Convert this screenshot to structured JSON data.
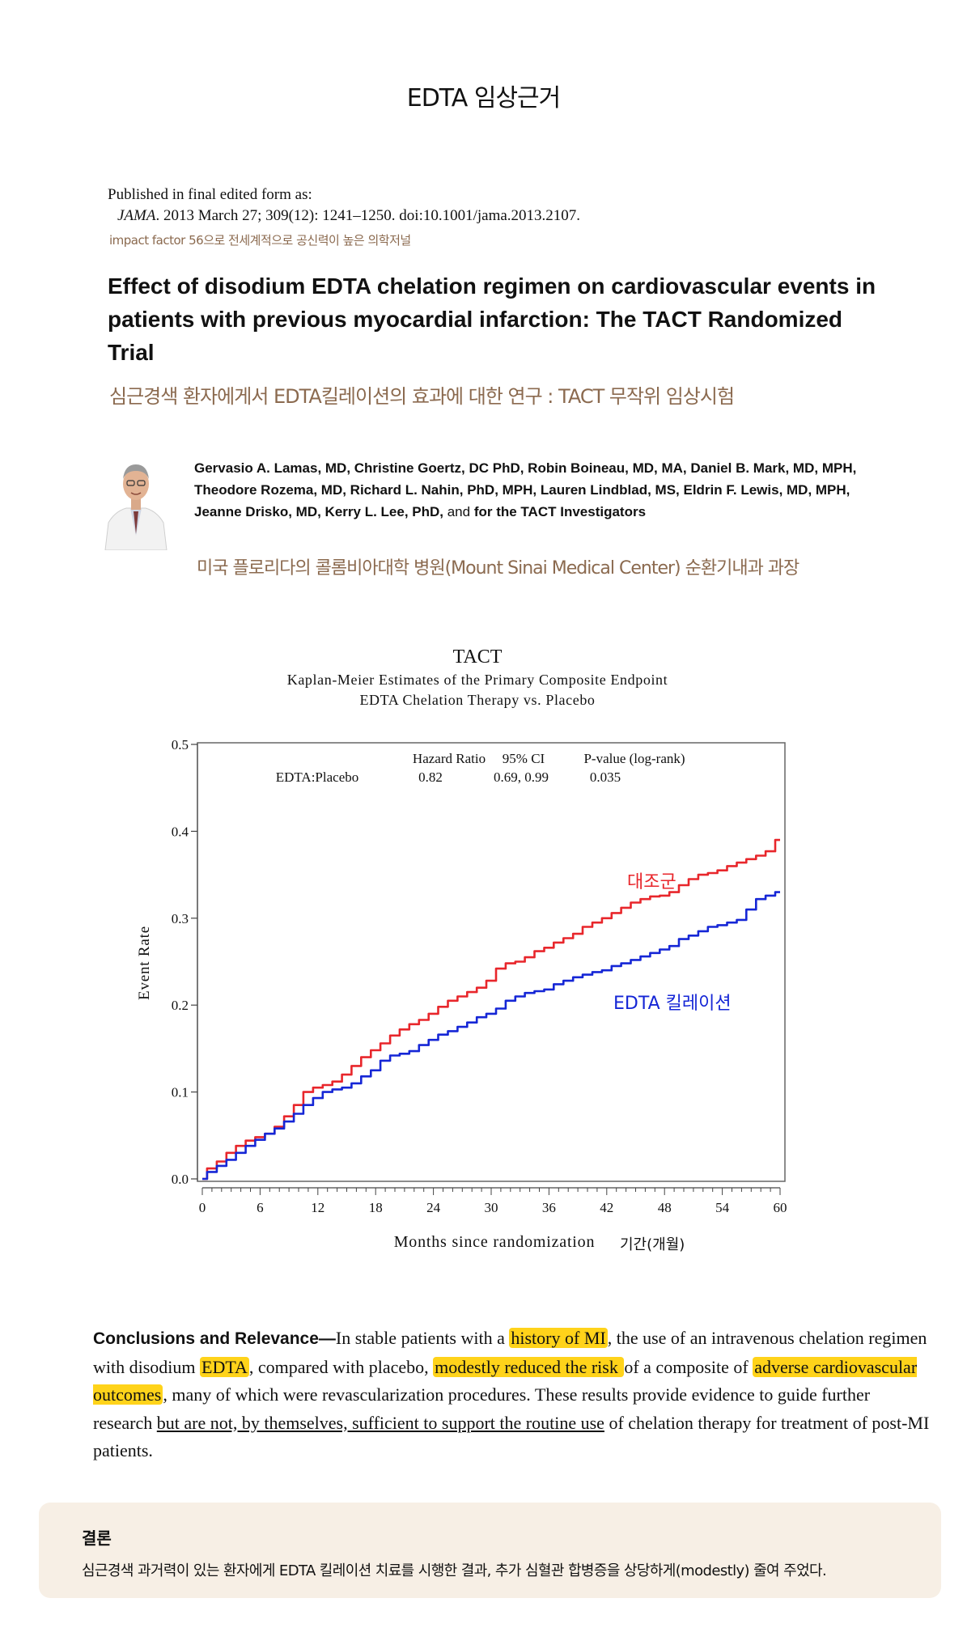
{
  "header": {
    "title": "EDTA 임상근거"
  },
  "publication": {
    "published_line": "Published in final edited form as:",
    "journal": "JAMA",
    "citation": ". 2013 March 27; 309(12): 1241–1250. doi:10.1001/jama.2013.2107.",
    "impact_note": "impact factor 56으로 전세계적으로 공신력이 높은 의학저널"
  },
  "paper": {
    "title": "Effect of disodium EDTA chelation regimen on cardiovascular events in patients with previous myocardial infarction: The TACT Randomized Trial",
    "title_ko": "심근경색 환자에게서 EDTA킬레이션의 효과에 대한 연구 : TACT 무작위 임상시험",
    "authors": "Gervasio A. Lamas, MD, Christine Goertz, DC PhD, Robin Boineau, MD, MA, Daniel B. Mark, MD, MPH, Theodore Rozema, MD, Richard L. Nahin, PhD, MPH, Lauren Lindblad, MS, Eldrin F. Lewis, MD, MPH, Jeanne Drisko, MD, Kerry L. Lee, PhD,",
    "authors_and": "and",
    "authors_tail": "for the TACT Investigators",
    "affiliation_ko": "미국 플로리다의 콜롬비아대학 병원(Mount Sinai Medical Center) 순환기내과 과장"
  },
  "chart_data": {
    "type": "line",
    "title": "TACT",
    "subtitle1": "Kaplan-Meier Estimates of the Primary Composite Endpoint",
    "subtitle2": "EDTA Chelation Therapy vs. Placebo",
    "xlabel": "Months since randomization",
    "xlabel_ko": "기간(개월)",
    "ylabel": "Event Rate",
    "xlim": [
      0,
      60
    ],
    "ylim": [
      0,
      0.5
    ],
    "xticks": [
      "0",
      "6",
      "12",
      "18",
      "24",
      "30",
      "36",
      "42",
      "48",
      "54",
      "60"
    ],
    "yticks": [
      "0.0",
      "0.1",
      "0.2",
      "0.3",
      "0.4",
      "0.5"
    ],
    "stats_table": {
      "headers": [
        "Hazard Ratio",
        "95% CI",
        "P-value (log-rank)"
      ],
      "row_label": "EDTA:Placebo",
      "values": [
        "0.82",
        "0.69, 0.99",
        "0.035"
      ]
    },
    "series": [
      {
        "name": "대조군",
        "color": "#e8262b",
        "x": [
          0,
          1,
          2,
          3,
          4,
          5,
          6,
          7,
          8,
          9,
          10,
          11,
          12,
          13,
          14,
          15,
          16,
          17,
          18,
          19,
          20,
          21,
          22,
          23,
          24,
          25,
          26,
          27,
          28,
          29,
          30,
          31,
          32,
          33,
          34,
          35,
          36,
          37,
          38,
          39,
          40,
          41,
          42,
          43,
          44,
          45,
          46,
          47,
          48,
          49,
          50,
          51,
          52,
          53,
          54,
          55,
          56,
          57,
          58,
          59,
          60
        ],
        "y": [
          0.0,
          0.012,
          0.02,
          0.03,
          0.038,
          0.044,
          0.048,
          0.052,
          0.06,
          0.072,
          0.085,
          0.1,
          0.105,
          0.108,
          0.112,
          0.12,
          0.13,
          0.14,
          0.148,
          0.156,
          0.165,
          0.172,
          0.178,
          0.183,
          0.19,
          0.198,
          0.205,
          0.21,
          0.215,
          0.22,
          0.228,
          0.242,
          0.248,
          0.25,
          0.255,
          0.262,
          0.266,
          0.272,
          0.277,
          0.282,
          0.29,
          0.295,
          0.3,
          0.306,
          0.312,
          0.318,
          0.322,
          0.325,
          0.326,
          0.33,
          0.338,
          0.345,
          0.35,
          0.352,
          0.355,
          0.36,
          0.364,
          0.368,
          0.372,
          0.377,
          0.39
        ]
      },
      {
        "name": "EDTA 킬레이션",
        "color": "#1526d6",
        "x": [
          0,
          1,
          2,
          3,
          4,
          5,
          6,
          7,
          8,
          9,
          10,
          11,
          12,
          13,
          14,
          15,
          16,
          17,
          18,
          19,
          20,
          21,
          22,
          23,
          24,
          25,
          26,
          27,
          28,
          29,
          30,
          31,
          32,
          33,
          34,
          35,
          36,
          37,
          38,
          39,
          40,
          41,
          42,
          43,
          44,
          45,
          46,
          47,
          48,
          49,
          50,
          51,
          52,
          53,
          54,
          55,
          56,
          57,
          58,
          59,
          60
        ],
        "y": [
          0.0,
          0.008,
          0.015,
          0.022,
          0.03,
          0.038,
          0.045,
          0.052,
          0.058,
          0.066,
          0.075,
          0.085,
          0.093,
          0.1,
          0.103,
          0.105,
          0.11,
          0.118,
          0.125,
          0.136,
          0.142,
          0.144,
          0.147,
          0.154,
          0.16,
          0.166,
          0.17,
          0.175,
          0.18,
          0.186,
          0.19,
          0.196,
          0.205,
          0.21,
          0.214,
          0.216,
          0.218,
          0.224,
          0.228,
          0.232,
          0.235,
          0.238,
          0.24,
          0.245,
          0.248,
          0.252,
          0.256,
          0.26,
          0.264,
          0.268,
          0.276,
          0.28,
          0.285,
          0.29,
          0.292,
          0.295,
          0.298,
          0.31,
          0.322,
          0.326,
          0.33
        ]
      }
    ]
  },
  "conclusion": {
    "lead": "Conclusions and Relevance—",
    "t1": "In stable patients with a ",
    "h1": "history of MI",
    "t2": ", the use of an intravenous chelation regimen with disodium ",
    "h2": "EDTA",
    "t3": ", compared with placebo, ",
    "h3": "modestly reduced the risk ",
    "t4": "of a composite of ",
    "h4": "adverse cardiovascular outcomes",
    "t5": ", many of which were revascularization procedures. These results provide evidence to guide further research ",
    "u1": "but are not, by themselves, sufficient to support the routine use",
    "t6": " of chelation therapy for treatment of post-MI patients."
  },
  "summary": {
    "label": "결론",
    "text": "심근경색 과거력이 있는 환자에게 EDTA 킬레이션 치료를 시행한 결과, 추가 심혈관 합병증을 상당하게(modestly) 줄여 주었다."
  }
}
